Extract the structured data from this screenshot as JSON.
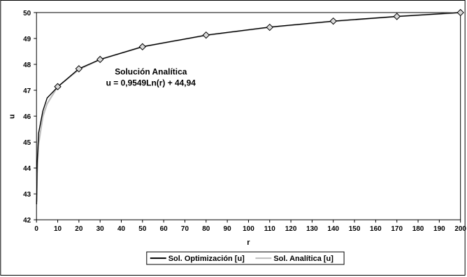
{
  "chart_data": {
    "type": "line",
    "xlabel": "r",
    "ylabel": "u",
    "xlim": [
      0,
      200
    ],
    "ylim": [
      42,
      50
    ],
    "x_ticks": [
      0,
      10,
      20,
      30,
      40,
      50,
      60,
      70,
      80,
      90,
      100,
      110,
      120,
      130,
      140,
      150,
      160,
      170,
      180,
      190,
      200
    ],
    "y_ticks": [
      42,
      43,
      44,
      45,
      46,
      47,
      48,
      49,
      50
    ],
    "grid": false,
    "legend_position": "bottom",
    "annotation": {
      "line1": "Solución Analítica",
      "line2": "u = 0,9549Ln(r) + 44,94",
      "at": [
        53,
        47.8
      ]
    },
    "series": [
      {
        "name": "Sol. Optimización [u]",
        "color": "#000000",
        "x": [
          0.05,
          0.3,
          1,
          3,
          5,
          10,
          20,
          30,
          50,
          80,
          110,
          140,
          170,
          200
        ],
        "y": [
          42.6,
          44.2,
          45.35,
          46.2,
          46.7,
          47.13,
          47.83,
          48.19,
          48.68,
          49.13,
          49.44,
          49.67,
          49.85,
          50.0
        ]
      },
      {
        "name": "Sol. Analítica [u]",
        "color": "#bdbdbd",
        "x": [
          0.05,
          0.3,
          1,
          3,
          5,
          10,
          20,
          30,
          50,
          80,
          110,
          140,
          170,
          200
        ],
        "y": [
          42.7,
          43.8,
          44.94,
          45.99,
          46.48,
          47.14,
          47.8,
          48.19,
          48.68,
          49.12,
          49.43,
          49.66,
          49.85,
          50.0
        ]
      }
    ],
    "markers": {
      "shape": "diamond",
      "x": [
        10,
        20,
        30,
        50,
        80,
        110,
        140,
        170,
        200
      ],
      "y": [
        47.14,
        47.83,
        48.19,
        48.68,
        49.13,
        49.43,
        49.67,
        49.85,
        50.0
      ]
    }
  }
}
